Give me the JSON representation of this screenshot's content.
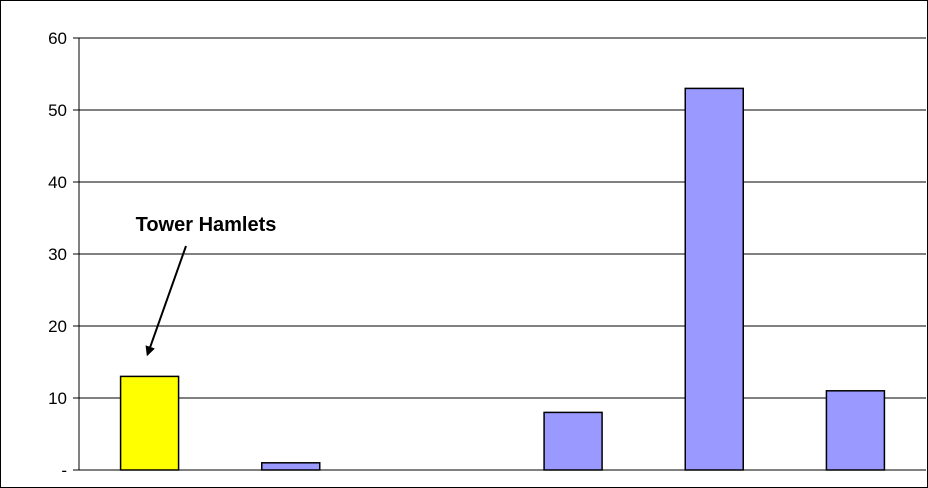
{
  "chart_data": {
    "type": "bar",
    "title": "",
    "xlabel": "",
    "ylabel": "",
    "categories": [
      "",
      "",
      "",
      "",
      "",
      ""
    ],
    "values": [
      13,
      1,
      0,
      8,
      53,
      11
    ],
    "ylim": [
      0,
      60
    ],
    "yticks": [
      0,
      10,
      20,
      30,
      40,
      50,
      60
    ],
    "ytick_labels": [
      "-",
      "10",
      "20",
      "30",
      "40",
      "50",
      "60"
    ],
    "grid": true,
    "highlight_index": 0,
    "colors": {
      "bar": "#9999FF",
      "highlight": "#FFFF00",
      "bar_edge": "#000000",
      "grid": "#000000"
    },
    "annotation": {
      "text": "Tower Hamlets",
      "target_index": 0
    }
  }
}
